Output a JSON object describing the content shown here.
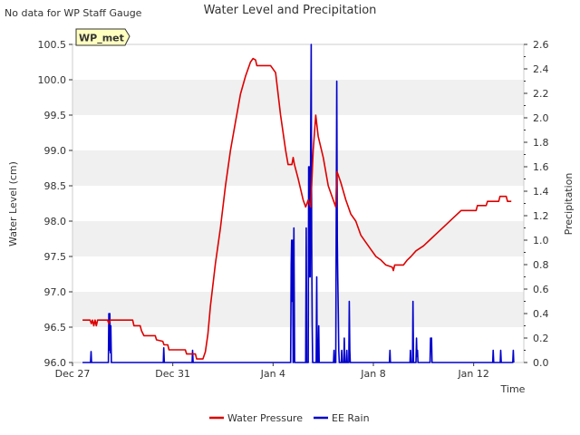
{
  "note": "No data for WP Staff Gauge",
  "site_badge": "WP_met",
  "colors": {
    "water_pressure": "#dd0000",
    "ee_rain": "#0000cc",
    "band": "#f0f0f0",
    "badge_fill": "#ffffc0",
    "badge_text": "#990000"
  },
  "chart_data": {
    "type": "line",
    "title": "Water Level and Precipitation",
    "xlabel": "Time",
    "ylabel_left": "Water Level (cm)",
    "ylabel_right": "Precipitation",
    "x_ticks": [
      "Dec 27",
      "Dec 31",
      "Jan 4",
      "Jan 8",
      "Jan 12"
    ],
    "x_tick_days": [
      0,
      4,
      8,
      12,
      16
    ],
    "xlim_days": [
      0,
      18
    ],
    "ylim_left": [
      96.0,
      100.5
    ],
    "yticks_left": [
      "96.0",
      "96.5",
      "97.0",
      "97.5",
      "98.0",
      "98.5",
      "99.0",
      "99.5",
      "100.0",
      "100.5"
    ],
    "ylim_right": [
      0.0,
      2.6
    ],
    "yticks_right": [
      "0.0",
      "0.2",
      "0.4",
      "0.6",
      "0.8",
      "1.0",
      "1.2",
      "1.4",
      "1.6",
      "1.8",
      "2.0",
      "2.2",
      "2.4",
      "2.6"
    ],
    "grid": "horizontal bands",
    "legend_position": "bottom-center",
    "series": [
      {
        "name": "Water Pressure",
        "axis": "left",
        "points": [
          [
            0.4,
            96.6
          ],
          [
            0.7,
            96.6
          ],
          [
            0.75,
            96.55
          ],
          [
            0.8,
            96.6
          ],
          [
            0.85,
            96.52
          ],
          [
            0.9,
            96.6
          ],
          [
            0.95,
            96.52
          ],
          [
            1.0,
            96.6
          ],
          [
            1.4,
            96.6
          ],
          [
            1.45,
            96.55
          ],
          [
            1.5,
            96.6
          ],
          [
            2.4,
            96.6
          ],
          [
            2.45,
            96.52
          ],
          [
            2.7,
            96.52
          ],
          [
            2.75,
            96.45
          ],
          [
            2.85,
            96.38
          ],
          [
            3.3,
            96.38
          ],
          [
            3.35,
            96.32
          ],
          [
            3.6,
            96.3
          ],
          [
            3.65,
            96.25
          ],
          [
            3.8,
            96.25
          ],
          [
            3.85,
            96.18
          ],
          [
            4.5,
            96.18
          ],
          [
            4.55,
            96.12
          ],
          [
            4.9,
            96.12
          ],
          [
            4.95,
            96.05
          ],
          [
            5.2,
            96.05
          ],
          [
            5.3,
            96.15
          ],
          [
            5.4,
            96.4
          ],
          [
            5.5,
            96.8
          ],
          [
            5.7,
            97.4
          ],
          [
            5.9,
            97.9
          ],
          [
            6.1,
            98.5
          ],
          [
            6.3,
            99.0
          ],
          [
            6.5,
            99.4
          ],
          [
            6.7,
            99.8
          ],
          [
            6.9,
            100.05
          ],
          [
            7.1,
            100.25
          ],
          [
            7.2,
            100.3
          ],
          [
            7.3,
            100.28
          ],
          [
            7.35,
            100.2
          ],
          [
            7.9,
            100.2
          ],
          [
            8.1,
            100.1
          ],
          [
            8.3,
            99.5
          ],
          [
            8.5,
            99.0
          ],
          [
            8.6,
            98.8
          ],
          [
            8.75,
            98.8
          ],
          [
            8.8,
            98.9
          ],
          [
            8.85,
            98.8
          ],
          [
            9.0,
            98.6
          ],
          [
            9.2,
            98.3
          ],
          [
            9.3,
            98.2
          ],
          [
            9.4,
            98.3
          ],
          [
            9.5,
            98.2
          ],
          [
            9.6,
            99.0
          ],
          [
            9.7,
            99.5
          ],
          [
            9.8,
            99.2
          ],
          [
            10.0,
            98.9
          ],
          [
            10.2,
            98.5
          ],
          [
            10.4,
            98.3
          ],
          [
            10.5,
            98.2
          ],
          [
            10.55,
            98.7
          ],
          [
            10.7,
            98.55
          ],
          [
            10.9,
            98.3
          ],
          [
            11.1,
            98.1
          ],
          [
            11.3,
            98.0
          ],
          [
            11.5,
            97.8
          ],
          [
            11.7,
            97.7
          ],
          [
            11.9,
            97.6
          ],
          [
            12.1,
            97.5
          ],
          [
            12.3,
            97.45
          ],
          [
            12.5,
            97.38
          ],
          [
            12.75,
            97.35
          ],
          [
            12.8,
            97.3
          ],
          [
            12.85,
            97.38
          ],
          [
            13.2,
            97.38
          ],
          [
            13.35,
            97.45
          ],
          [
            13.5,
            97.5
          ],
          [
            13.7,
            97.58
          ],
          [
            14.0,
            97.65
          ],
          [
            14.3,
            97.75
          ],
          [
            14.6,
            97.85
          ],
          [
            14.9,
            97.95
          ],
          [
            15.2,
            98.05
          ],
          [
            15.5,
            98.15
          ],
          [
            16.1,
            98.15
          ],
          [
            16.15,
            98.22
          ],
          [
            16.5,
            98.22
          ],
          [
            16.55,
            98.28
          ],
          [
            17.0,
            98.28
          ],
          [
            17.05,
            98.35
          ],
          [
            17.3,
            98.35
          ],
          [
            17.35,
            98.28
          ],
          [
            17.5,
            98.28
          ]
        ]
      },
      {
        "name": "EE Rain",
        "axis": "right",
        "points": [
          [
            0.4,
            0.0
          ],
          [
            0.72,
            0.0
          ],
          [
            0.74,
            0.09
          ],
          [
            0.76,
            0.0
          ],
          [
            1.43,
            0.0
          ],
          [
            1.45,
            0.4
          ],
          [
            1.47,
            0.1
          ],
          [
            1.49,
            0.4
          ],
          [
            1.51,
            0.08
          ],
          [
            1.53,
            0.3
          ],
          [
            1.55,
            0.0
          ],
          [
            3.62,
            0.0
          ],
          [
            3.64,
            0.12
          ],
          [
            3.66,
            0.0
          ],
          [
            4.77,
            0.0
          ],
          [
            4.79,
            0.1
          ],
          [
            4.81,
            0.0
          ],
          [
            8.7,
            0.0
          ],
          [
            8.72,
            0.8
          ],
          [
            8.74,
            1.0
          ],
          [
            8.76,
            0.5
          ],
          [
            8.78,
            1.0
          ],
          [
            8.8,
            0.0
          ],
          [
            8.83,
            1.1
          ],
          [
            8.86,
            0.0
          ],
          [
            9.3,
            0.0
          ],
          [
            9.32,
            1.1
          ],
          [
            9.34,
            0.0
          ],
          [
            9.4,
            0.0
          ],
          [
            9.42,
            1.6
          ],
          [
            9.44,
            0.7
          ],
          [
            9.46,
            1.6
          ],
          [
            9.48,
            0.7
          ],
          [
            9.5,
            1.8
          ],
          [
            9.52,
            2.6
          ],
          [
            9.54,
            1.0
          ],
          [
            9.56,
            0.3
          ],
          [
            9.58,
            0.0
          ],
          [
            9.72,
            0.0
          ],
          [
            9.74,
            0.7
          ],
          [
            9.76,
            0.0
          ],
          [
            9.8,
            0.0
          ],
          [
            9.82,
            0.3
          ],
          [
            9.84,
            0.0
          ],
          [
            10.41,
            0.0
          ],
          [
            10.43,
            0.1
          ],
          [
            10.45,
            0.0
          ],
          [
            10.5,
            0.0
          ],
          [
            10.52,
            1.3
          ],
          [
            10.54,
            2.3
          ],
          [
            10.56,
            1.0
          ],
          [
            10.58,
            0.7
          ],
          [
            10.6,
            0.4
          ],
          [
            10.62,
            0.1
          ],
          [
            10.64,
            0.0
          ],
          [
            10.72,
            0.0
          ],
          [
            10.74,
            0.1
          ],
          [
            10.76,
            0.0
          ],
          [
            10.82,
            0.0
          ],
          [
            10.84,
            0.2
          ],
          [
            10.86,
            0.0
          ],
          [
            10.92,
            0.0
          ],
          [
            10.94,
            0.1
          ],
          [
            10.96,
            0.0
          ],
          [
            11.02,
            0.0
          ],
          [
            11.04,
            0.5
          ],
          [
            11.06,
            0.1
          ],
          [
            11.08,
            0.0
          ],
          [
            12.64,
            0.0
          ],
          [
            12.66,
            0.1
          ],
          [
            12.68,
            0.0
          ],
          [
            13.46,
            0.0
          ],
          [
            13.48,
            0.1
          ],
          [
            13.5,
            0.0
          ],
          [
            13.56,
            0.0
          ],
          [
            13.58,
            0.5
          ],
          [
            13.6,
            0.0
          ],
          [
            13.7,
            0.0
          ],
          [
            13.72,
            0.2
          ],
          [
            13.74,
            0.05
          ],
          [
            13.76,
            0.1
          ],
          [
            13.78,
            0.0
          ],
          [
            14.26,
            0.0
          ],
          [
            14.28,
            0.2
          ],
          [
            14.3,
            0.1
          ],
          [
            14.32,
            0.2
          ],
          [
            14.34,
            0.0
          ],
          [
            16.76,
            0.0
          ],
          [
            16.78,
            0.1
          ],
          [
            16.8,
            0.0
          ],
          [
            17.06,
            0.0
          ],
          [
            17.08,
            0.1
          ],
          [
            17.1,
            0.0
          ],
          [
            17.56,
            0.0
          ],
          [
            17.58,
            0.1
          ],
          [
            17.6,
            0.0
          ]
        ]
      }
    ]
  }
}
